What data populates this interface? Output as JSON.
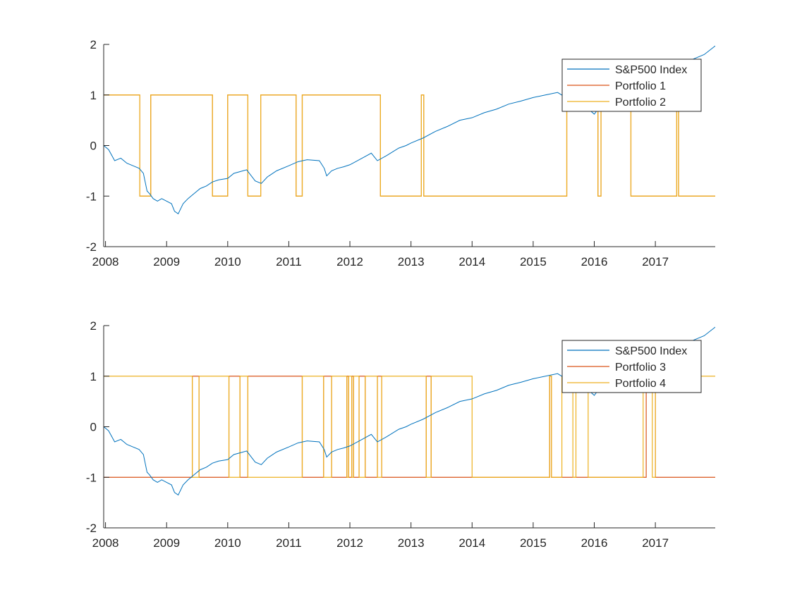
{
  "chart_data": [
    {
      "type": "line",
      "title": "",
      "xlabel": "",
      "ylabel": "",
      "xlim": [
        2007.97,
        2017.98
      ],
      "ylim": [
        -2,
        2
      ],
      "x_ticks": [
        2008,
        2009,
        2010,
        2011,
        2012,
        2013,
        2014,
        2015,
        2016,
        2017
      ],
      "y_ticks": [
        -2,
        -1,
        0,
        1,
        2
      ],
      "grid": false,
      "legend_position": "top-right",
      "series": [
        {
          "name": "S&P500 Index",
          "color": "#0072BD",
          "x": [
            2007.97,
            2008.05,
            2008.15,
            2008.25,
            2008.35,
            2008.45,
            2008.55,
            2008.62,
            2008.68,
            2008.72,
            2008.78,
            2008.85,
            2008.92,
            2009.0,
            2009.08,
            2009.13,
            2009.19,
            2009.27,
            2009.35,
            2009.45,
            2009.55,
            2009.65,
            2009.75,
            2009.85,
            2010.0,
            2010.1,
            2010.25,
            2010.31,
            2010.45,
            2010.55,
            2010.65,
            2010.8,
            2011.0,
            2011.15,
            2011.3,
            2011.5,
            2011.58,
            2011.62,
            2011.7,
            2011.8,
            2011.9,
            2012.0,
            2012.2,
            2012.35,
            2012.45,
            2012.6,
            2012.8,
            2012.92,
            2013.0,
            2013.2,
            2013.4,
            2013.6,
            2013.8,
            2014.0,
            2014.2,
            2014.4,
            2014.6,
            2014.8,
            2015.0,
            2015.2,
            2015.4,
            2015.6,
            2015.7,
            2015.85,
            2016.0,
            2016.1,
            2016.3,
            2016.5,
            2016.7,
            2016.9,
            2017.0,
            2017.2,
            2017.4,
            2017.6,
            2017.8,
            2017.98
          ],
          "values": [
            0.0,
            -0.08,
            -0.3,
            -0.25,
            -0.35,
            -0.4,
            -0.45,
            -0.55,
            -0.9,
            -0.95,
            -1.05,
            -1.1,
            -1.05,
            -1.1,
            -1.15,
            -1.3,
            -1.35,
            -1.15,
            -1.05,
            -0.95,
            -0.85,
            -0.8,
            -0.72,
            -0.68,
            -0.65,
            -0.55,
            -0.5,
            -0.48,
            -0.7,
            -0.75,
            -0.62,
            -0.5,
            -0.4,
            -0.32,
            -0.28,
            -0.3,
            -0.45,
            -0.6,
            -0.5,
            -0.45,
            -0.42,
            -0.38,
            -0.25,
            -0.15,
            -0.3,
            -0.2,
            -0.05,
            0.0,
            0.05,
            0.15,
            0.28,
            0.38,
            0.5,
            0.55,
            0.65,
            0.72,
            0.82,
            0.88,
            0.95,
            1.0,
            1.05,
            0.9,
            0.8,
            0.78,
            0.62,
            0.78,
            0.95,
            1.05,
            1.15,
            1.2,
            1.3,
            1.45,
            1.55,
            1.7,
            1.8,
            1.97
          ]
        },
        {
          "name": "Portfolio 1",
          "color": "#D95319",
          "start_value": 1,
          "switch_dates": [
            2008.56,
            2008.74,
            2009.75,
            2010.0,
            2010.33,
            2010.54,
            2011.12,
            2011.22,
            2012.5,
            2013.17,
            2013.21,
            2015.55,
            2016.06,
            2016.11,
            2016.6,
            2017.35,
            2017.38
          ]
        },
        {
          "name": "Portfolio 2",
          "color": "#EDB120",
          "start_value": 1,
          "switch_dates": [
            2008.56,
            2008.74,
            2009.75,
            2010.0,
            2010.33,
            2010.54,
            2011.12,
            2011.22,
            2012.5,
            2013.17,
            2013.21,
            2015.55,
            2016.06,
            2016.11,
            2016.6,
            2017.35,
            2017.38
          ]
        }
      ]
    },
    {
      "type": "line",
      "title": "",
      "xlabel": "",
      "ylabel": "",
      "xlim": [
        2007.97,
        2017.98
      ],
      "ylim": [
        -2,
        2
      ],
      "x_ticks": [
        2008,
        2009,
        2010,
        2011,
        2012,
        2013,
        2014,
        2015,
        2016,
        2017
      ],
      "y_ticks": [
        -2,
        -1,
        0,
        1,
        2
      ],
      "grid": false,
      "legend_position": "top-right",
      "series": [
        {
          "name": "S&P500 Index",
          "color": "#0072BD",
          "x": [
            2007.97,
            2008.05,
            2008.15,
            2008.25,
            2008.35,
            2008.45,
            2008.55,
            2008.62,
            2008.68,
            2008.72,
            2008.78,
            2008.85,
            2008.92,
            2009.0,
            2009.08,
            2009.13,
            2009.19,
            2009.27,
            2009.35,
            2009.45,
            2009.55,
            2009.65,
            2009.75,
            2009.85,
            2010.0,
            2010.1,
            2010.25,
            2010.31,
            2010.45,
            2010.55,
            2010.65,
            2010.8,
            2011.0,
            2011.15,
            2011.3,
            2011.5,
            2011.58,
            2011.62,
            2011.7,
            2011.8,
            2011.9,
            2012.0,
            2012.2,
            2012.35,
            2012.45,
            2012.6,
            2012.8,
            2012.92,
            2013.0,
            2013.2,
            2013.4,
            2013.6,
            2013.8,
            2014.0,
            2014.2,
            2014.4,
            2014.6,
            2014.8,
            2015.0,
            2015.2,
            2015.4,
            2015.6,
            2015.7,
            2015.85,
            2016.0,
            2016.1,
            2016.3,
            2016.5,
            2016.7,
            2016.9,
            2017.0,
            2017.2,
            2017.4,
            2017.6,
            2017.8,
            2017.98
          ],
          "values": [
            0.0,
            -0.08,
            -0.3,
            -0.25,
            -0.35,
            -0.4,
            -0.45,
            -0.55,
            -0.9,
            -0.95,
            -1.05,
            -1.1,
            -1.05,
            -1.1,
            -1.15,
            -1.3,
            -1.35,
            -1.15,
            -1.05,
            -0.95,
            -0.85,
            -0.8,
            -0.72,
            -0.68,
            -0.65,
            -0.55,
            -0.5,
            -0.48,
            -0.7,
            -0.75,
            -0.62,
            -0.5,
            -0.4,
            -0.32,
            -0.28,
            -0.3,
            -0.45,
            -0.6,
            -0.5,
            -0.45,
            -0.42,
            -0.38,
            -0.25,
            -0.15,
            -0.3,
            -0.2,
            -0.05,
            0.0,
            0.05,
            0.15,
            0.28,
            0.38,
            0.5,
            0.55,
            0.65,
            0.72,
            0.82,
            0.88,
            0.95,
            1.0,
            1.05,
            0.9,
            0.8,
            0.78,
            0.62,
            0.78,
            0.95,
            1.05,
            1.15,
            1.2,
            1.3,
            1.45,
            1.55,
            1.7,
            1.8,
            1.97
          ]
        },
        {
          "name": "Portfolio 3",
          "color": "#D95319",
          "start_value": -1,
          "switch_dates": [
            2009.42,
            2009.53,
            2010.02,
            2010.2,
            2010.33,
            2011.22,
            2011.57,
            2011.7,
            2011.95,
            2011.98,
            2012.03,
            2012.06,
            2012.15,
            2012.25,
            2012.45,
            2012.52,
            2013.25,
            2013.33,
            2015.27,
            2015.3,
            2016.85,
            2017.0
          ]
        },
        {
          "name": "Portfolio 4",
          "color": "#EDB120",
          "start_value": 1,
          "switch_dates": [
            2009.42,
            2009.53,
            2010.02,
            2010.2,
            2010.33,
            2011.22,
            2011.57,
            2011.7,
            2011.95,
            2011.98,
            2012.03,
            2012.06,
            2012.15,
            2012.25,
            2012.45,
            2012.52,
            2013.25,
            2013.33,
            2014.0,
            2015.27,
            2015.3,
            2015.47,
            2015.65,
            2015.7,
            2015.9,
            2016.8,
            2016.95,
            2017.0
          ]
        }
      ]
    }
  ]
}
